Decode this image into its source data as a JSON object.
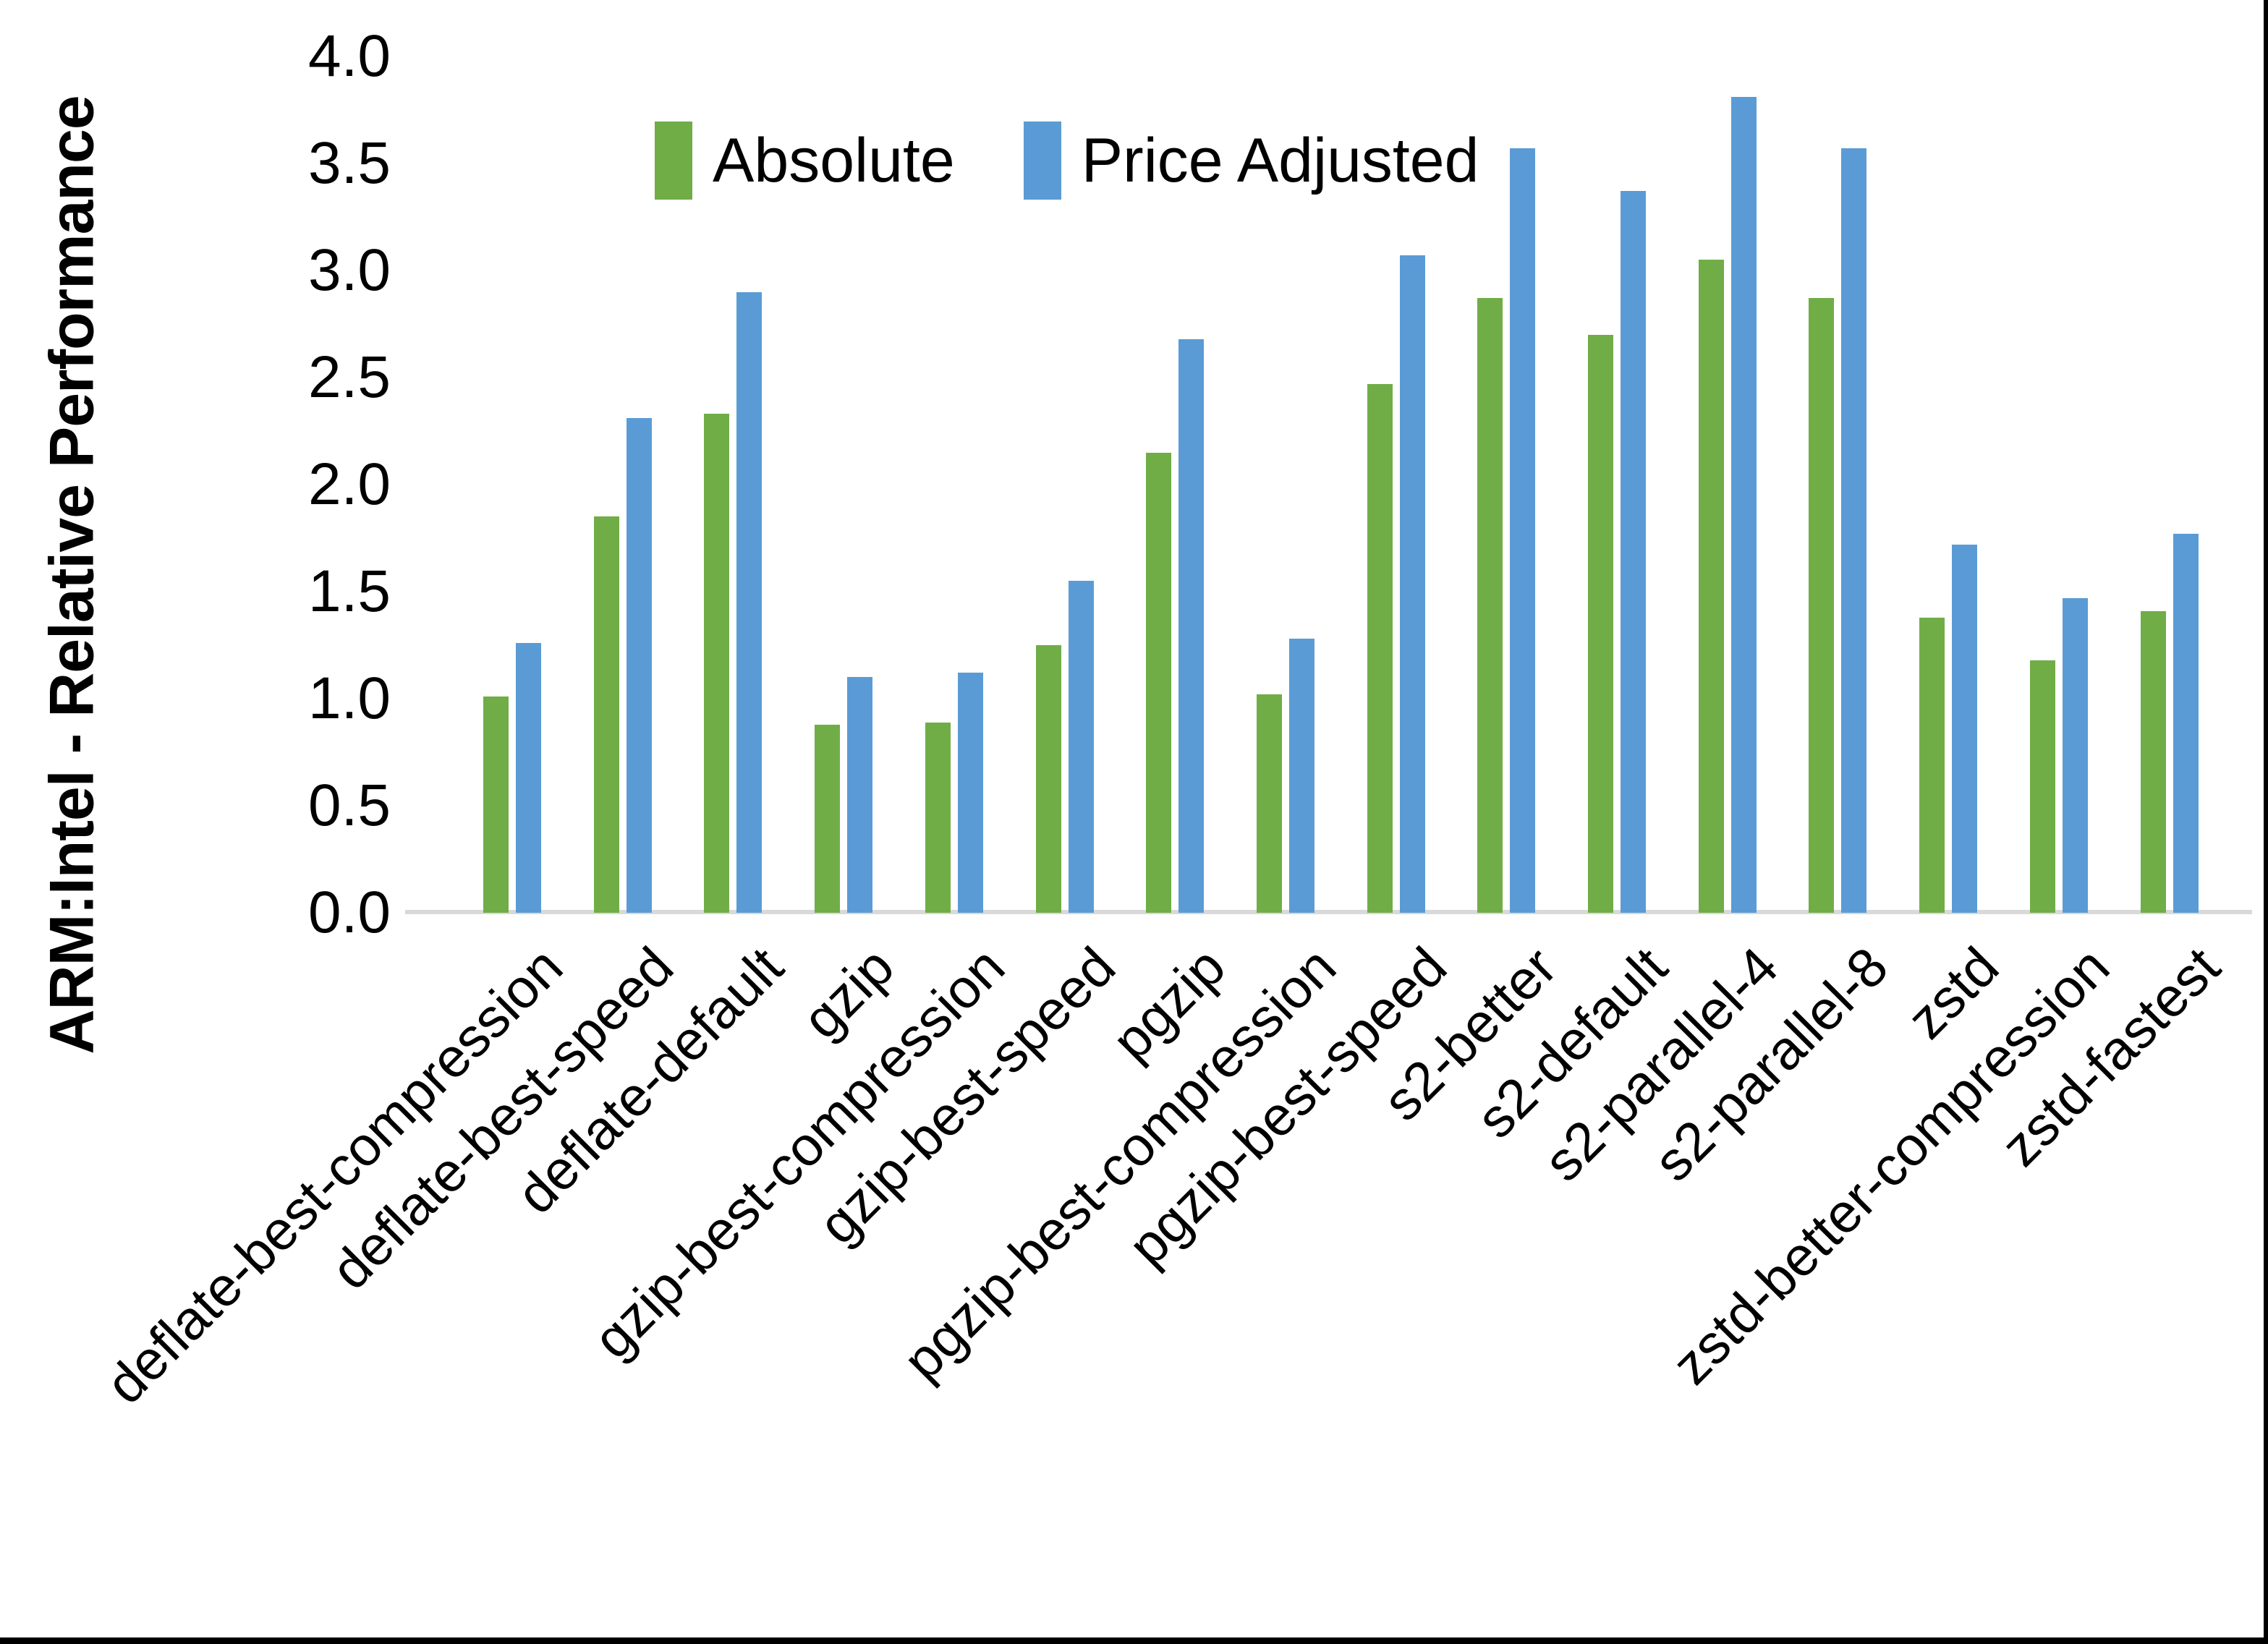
{
  "chart_data": {
    "type": "bar",
    "title": "",
    "ylabel": "ARM:Intel - Relative Performance",
    "xlabel": "",
    "ylim": [
      0.0,
      4.0
    ],
    "ytick_step": 0.5,
    "ytick_labels": [
      "0.0",
      "0.5",
      "1.0",
      "1.5",
      "2.0",
      "2.5",
      "3.0",
      "3.5",
      "4.0"
    ],
    "grid": "off",
    "legend_position": "top",
    "categories": [
      "deflate-best-compression",
      "deflate-best-speed",
      "deflate-default",
      "gzip",
      "gzip-best-compression",
      "gzip-best-speed",
      "pgzip",
      "pgzip-best-compression",
      "pgzip-best-speed",
      "s2-better",
      "s2-default",
      "s2-parallel-4",
      "s2-parallel-8",
      "zstd",
      "zstd-better-compression",
      "zstd-fastest"
    ],
    "series": [
      {
        "name": "Absolute",
        "color": "#70AD47",
        "values": [
          1.01,
          1.85,
          2.33,
          0.88,
          0.89,
          1.25,
          2.15,
          1.02,
          2.47,
          2.87,
          2.7,
          3.05,
          2.87,
          1.38,
          1.18,
          1.41
        ]
      },
      {
        "name": "Price Adjusted",
        "color": "#5B9BD5",
        "values": [
          1.26,
          2.31,
          2.9,
          1.1,
          1.12,
          1.55,
          2.68,
          1.28,
          3.07,
          3.57,
          3.37,
          3.81,
          3.57,
          1.72,
          1.47,
          1.77
        ]
      }
    ],
    "axis_line_color": "#D9D9D9"
  }
}
